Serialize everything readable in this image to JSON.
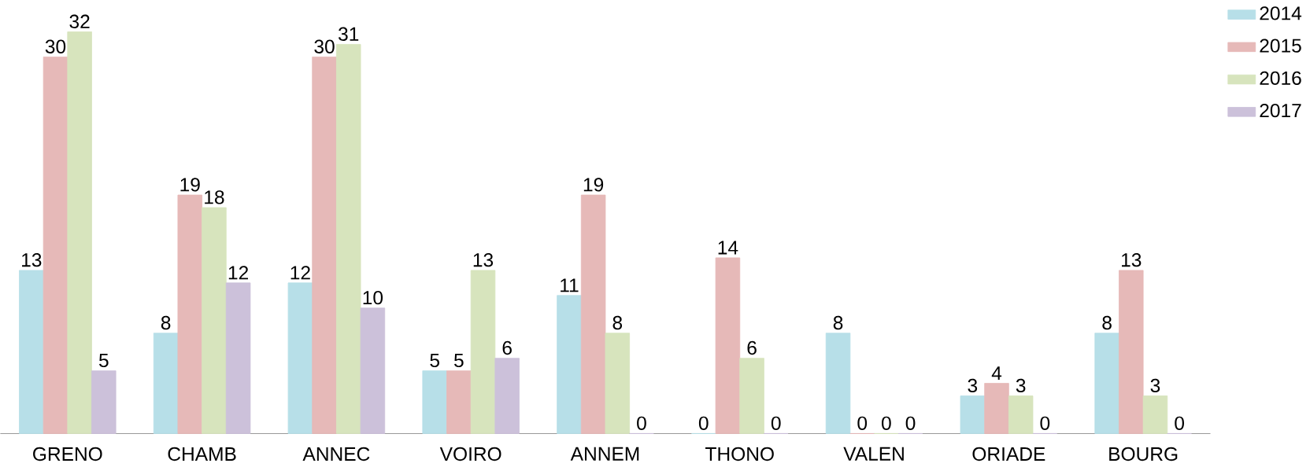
{
  "chart_data": {
    "type": "bar",
    "categories": [
      "GRENO",
      "CHAMB",
      "ANNEC",
      "VOIRO",
      "ANNEM",
      "THONO",
      "VALEN",
      "ORIADE",
      "BOURG"
    ],
    "series": [
      {
        "name": "2014",
        "color": "#b7dfe8",
        "values": [
          13,
          8,
          12,
          5,
          11,
          0,
          8,
          3,
          8
        ]
      },
      {
        "name": "2015",
        "color": "#e6b9b8",
        "values": [
          30,
          19,
          30,
          5,
          19,
          14,
          0,
          4,
          13
        ]
      },
      {
        "name": "2016",
        "color": "#d7e4bd",
        "values": [
          32,
          18,
          31,
          13,
          8,
          6,
          0,
          3,
          3
        ]
      },
      {
        "name": "2017",
        "color": "#ccc1da",
        "values": [
          5,
          12,
          10,
          6,
          0,
          0,
          0,
          0,
          0
        ]
      }
    ],
    "data_labels": true,
    "legend": "top right",
    "grid": false
  }
}
